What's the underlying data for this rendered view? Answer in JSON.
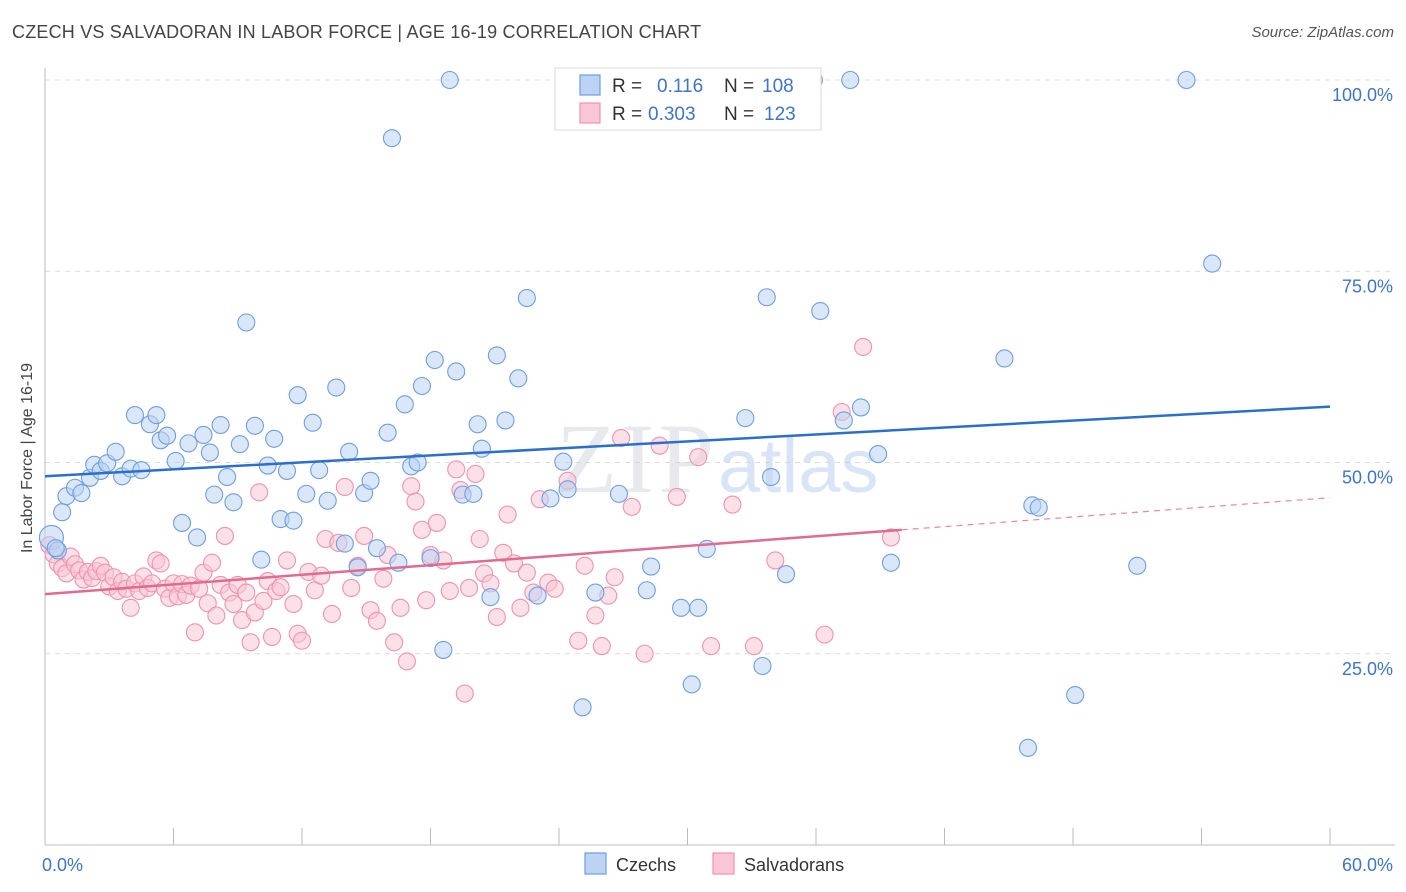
{
  "header": {
    "title": "CZECH VS SALVADORAN IN LABOR FORCE | AGE 16-19 CORRELATION CHART",
    "source": "Source: ZipAtlas.com"
  },
  "watermark": {
    "zip": "ZIP",
    "atlas": "atlas"
  },
  "legend_top": {
    "rows": [
      {
        "r_label": "R =",
        "r_value": "0.116",
        "n_label": "N =",
        "n_value": "108"
      },
      {
        "r_label": "R =",
        "r_value": "0.303",
        "n_label": "N =",
        "n_value": "123"
      }
    ]
  },
  "chart_data": {
    "type": "scatter",
    "title": "CZECH VS SALVADORAN IN LABOR FORCE | AGE 16-19 CORRELATION CHART",
    "xlabel": "",
    "ylabel": "In Labor Force | Age 16-19",
    "xlim": [
      0,
      60
    ],
    "ylim": [
      0,
      102
    ],
    "x_tick_labels": [
      "0.0%",
      "60.0%"
    ],
    "y_ticks": [
      25,
      50,
      75,
      100
    ],
    "y_tick_labels": [
      "25.0%",
      "50.0%",
      "75.0%",
      "100.0%"
    ],
    "grid": true,
    "legend_position": "bottom",
    "colors": {
      "czechs": "#6f9ee0",
      "salvadorans": "#ef93b0",
      "czech_line": "#2b6fcc",
      "salv_line": "#e06a90",
      "tick_label": "#3f74c8"
    },
    "series": [
      {
        "name": "Czechs",
        "r": 0.116,
        "n": 108,
        "trend": {
          "x": [
            0,
            60
          ],
          "y": [
            48.2,
            57.3
          ]
        },
        "points": [
          [
            0.3,
            40.2
          ],
          [
            0.6,
            38.5
          ],
          [
            0.8,
            43.5
          ],
          [
            1.0,
            45.6
          ],
          [
            1.4,
            46.7
          ],
          [
            1.7,
            46.0
          ],
          [
            2.1,
            48.0
          ],
          [
            2.3,
            49.7
          ],
          [
            2.6,
            48.9
          ],
          [
            2.9,
            49.9
          ],
          [
            3.3,
            51.4
          ],
          [
            3.6,
            48.2
          ],
          [
            4.0,
            49.2
          ],
          [
            4.5,
            49.0
          ],
          [
            4.2,
            56.2
          ],
          [
            4.9,
            55.0
          ],
          [
            5.2,
            56.2
          ],
          [
            5.4,
            52.9
          ],
          [
            5.7,
            53.5
          ],
          [
            6.1,
            50.2
          ],
          [
            6.4,
            42.1
          ],
          [
            6.7,
            52.5
          ],
          [
            7.1,
            40.2
          ],
          [
            7.4,
            53.6
          ],
          [
            7.7,
            51.3
          ],
          [
            7.9,
            45.8
          ],
          [
            8.2,
            54.9
          ],
          [
            8.5,
            48.1
          ],
          [
            8.8,
            44.8
          ],
          [
            9.1,
            52.4
          ],
          [
            9.4,
            68.3
          ],
          [
            9.8,
            54.8
          ],
          [
            10.1,
            37.3
          ],
          [
            10.4,
            49.6
          ],
          [
            10.7,
            53.1
          ],
          [
            11.0,
            42.6
          ],
          [
            11.3,
            48.9
          ],
          [
            11.6,
            42.4
          ],
          [
            11.8,
            58.8
          ],
          [
            12.2,
            45.9
          ],
          [
            12.5,
            55.2
          ],
          [
            12.8,
            49.0
          ],
          [
            13.2,
            45.0
          ],
          [
            13.6,
            59.8
          ],
          [
            14.0,
            39.4
          ],
          [
            14.2,
            51.4
          ],
          [
            14.6,
            36.3
          ],
          [
            14.9,
            46.0
          ],
          [
            15.2,
            47.6
          ],
          [
            15.5,
            38.8
          ],
          [
            16.0,
            53.9
          ],
          [
            16.2,
            92.4
          ],
          [
            16.5,
            36.9
          ],
          [
            16.8,
            57.6
          ],
          [
            17.1,
            49.5
          ],
          [
            17.4,
            50.0
          ],
          [
            17.6,
            60.0
          ],
          [
            18.0,
            37.5
          ],
          [
            18.2,
            63.4
          ],
          [
            18.6,
            25.5
          ],
          [
            18.9,
            100.0
          ],
          [
            19.2,
            61.9
          ],
          [
            19.5,
            45.8
          ],
          [
            20.0,
            45.9
          ],
          [
            20.2,
            55.0
          ],
          [
            20.4,
            51.8
          ],
          [
            20.8,
            32.4
          ],
          [
            21.1,
            64.0
          ],
          [
            21.5,
            55.5
          ],
          [
            22.1,
            61.0
          ],
          [
            22.5,
            71.5
          ],
          [
            23.0,
            32.6
          ],
          [
            23.6,
            45.3
          ],
          [
            24.2,
            50.1
          ],
          [
            24.4,
            46.5
          ],
          [
            25.1,
            18.0
          ],
          [
            25.7,
            33.0
          ],
          [
            26.8,
            45.9
          ],
          [
            27.1,
            100.0
          ],
          [
            28.1,
            33.3
          ],
          [
            28.3,
            36.4
          ],
          [
            29.4,
            100.0
          ],
          [
            29.7,
            31.0
          ],
          [
            30.2,
            21.0
          ],
          [
            30.5,
            31.0
          ],
          [
            30.9,
            38.7
          ],
          [
            31.5,
            94.6
          ],
          [
            32.7,
            55.8
          ],
          [
            33.5,
            23.4
          ],
          [
            33.7,
            71.6
          ],
          [
            33.9,
            48.1
          ],
          [
            34.6,
            35.4
          ],
          [
            35.9,
            100.0
          ],
          [
            36.2,
            69.8
          ],
          [
            37.3,
            55.5
          ],
          [
            37.6,
            100.0
          ],
          [
            38.1,
            57.2
          ],
          [
            38.9,
            51.1
          ],
          [
            39.5,
            36.9
          ],
          [
            44.8,
            63.6
          ],
          [
            45.9,
            12.7
          ],
          [
            46.1,
            44.4
          ],
          [
            46.4,
            44.1
          ],
          [
            48.1,
            19.6
          ],
          [
            51.0,
            36.5
          ],
          [
            53.3,
            100.0
          ],
          [
            54.5,
            76.0
          ],
          [
            0.5,
            38.8
          ]
        ]
      },
      {
        "name": "Salvadorans",
        "r": 0.303,
        "n": 123,
        "trend": {
          "x": [
            0,
            40
          ],
          "y": [
            32.8,
            41.2
          ],
          "dashed_to": {
            "x": 60,
            "y": 45.4
          }
        },
        "points": [
          [
            0.2,
            39.2
          ],
          [
            0.4,
            38.0
          ],
          [
            0.6,
            36.8
          ],
          [
            0.8,
            36.2
          ],
          [
            1.0,
            35.5
          ],
          [
            1.2,
            37.7
          ],
          [
            1.4,
            36.7
          ],
          [
            1.6,
            35.9
          ],
          [
            1.8,
            34.7
          ],
          [
            2.0,
            35.7
          ],
          [
            2.2,
            34.9
          ],
          [
            2.4,
            35.8
          ],
          [
            2.6,
            36.5
          ],
          [
            2.8,
            35.6
          ],
          [
            3.0,
            33.8
          ],
          [
            3.2,
            35.0
          ],
          [
            3.4,
            33.2
          ],
          [
            3.6,
            34.4
          ],
          [
            3.8,
            33.5
          ],
          [
            4.0,
            31.0
          ],
          [
            4.2,
            34.2
          ],
          [
            4.4,
            33.2
          ],
          [
            4.6,
            35.1
          ],
          [
            4.8,
            33.6
          ],
          [
            5.0,
            34.2
          ],
          [
            5.2,
            37.2
          ],
          [
            5.4,
            36.8
          ],
          [
            5.6,
            33.5
          ],
          [
            5.8,
            32.3
          ],
          [
            6.0,
            34.2
          ],
          [
            6.2,
            32.5
          ],
          [
            6.4,
            34.1
          ],
          [
            6.6,
            32.7
          ],
          [
            6.8,
            33.9
          ],
          [
            7.0,
            27.8
          ],
          [
            7.2,
            33.5
          ],
          [
            7.4,
            35.6
          ],
          [
            7.6,
            31.6
          ],
          [
            7.8,
            36.9
          ],
          [
            8.0,
            30.0
          ],
          [
            8.2,
            34.0
          ],
          [
            8.4,
            40.4
          ],
          [
            8.6,
            33.0
          ],
          [
            8.8,
            31.5
          ],
          [
            9.0,
            34.0
          ],
          [
            9.2,
            29.4
          ],
          [
            9.4,
            33.0
          ],
          [
            9.6,
            26.5
          ],
          [
            9.8,
            30.4
          ],
          [
            10.0,
            46.1
          ],
          [
            10.2,
            31.9
          ],
          [
            10.4,
            34.5
          ],
          [
            10.6,
            27.2
          ],
          [
            10.8,
            33.2
          ],
          [
            11.0,
            33.7
          ],
          [
            11.3,
            37.2
          ],
          [
            11.6,
            31.5
          ],
          [
            11.8,
            27.6
          ],
          [
            12.0,
            26.7
          ],
          [
            12.3,
            35.7
          ],
          [
            12.6,
            33.3
          ],
          [
            12.9,
            35.2
          ],
          [
            13.1,
            40.0
          ],
          [
            13.4,
            30.2
          ],
          [
            13.7,
            39.5
          ],
          [
            14.0,
            46.8
          ],
          [
            14.3,
            33.6
          ],
          [
            14.6,
            36.5
          ],
          [
            14.9,
            40.4
          ],
          [
            15.2,
            30.7
          ],
          [
            15.5,
            29.3
          ],
          [
            15.8,
            34.8
          ],
          [
            16.0,
            37.9
          ],
          [
            16.3,
            26.5
          ],
          [
            16.6,
            31.0
          ],
          [
            16.9,
            24.0
          ],
          [
            17.1,
            46.9
          ],
          [
            17.3,
            44.9
          ],
          [
            17.6,
            41.2
          ],
          [
            17.8,
            32.0
          ],
          [
            18.0,
            37.9
          ],
          [
            18.3,
            42.1
          ],
          [
            18.6,
            37.2
          ],
          [
            18.9,
            33.2
          ],
          [
            19.2,
            49.1
          ],
          [
            19.4,
            46.4
          ],
          [
            19.6,
            19.8
          ],
          [
            19.8,
            33.6
          ],
          [
            20.1,
            48.5
          ],
          [
            20.3,
            40.0
          ],
          [
            20.5,
            35.5
          ],
          [
            20.8,
            34.2
          ],
          [
            21.1,
            29.8
          ],
          [
            21.4,
            38.2
          ],
          [
            21.6,
            43.2
          ],
          [
            21.9,
            36.8
          ],
          [
            22.2,
            31.0
          ],
          [
            22.5,
            35.6
          ],
          [
            22.8,
            33.0
          ],
          [
            23.1,
            45.2
          ],
          [
            23.5,
            34.3
          ],
          [
            23.8,
            33.5
          ],
          [
            24.4,
            47.6
          ],
          [
            24.9,
            26.7
          ],
          [
            25.2,
            36.5
          ],
          [
            25.7,
            30.0
          ],
          [
            26.0,
            26.0
          ],
          [
            26.3,
            32.6
          ],
          [
            26.6,
            35.0
          ],
          [
            26.9,
            53.2
          ],
          [
            27.4,
            44.2
          ],
          [
            28.0,
            25.0
          ],
          [
            28.7,
            52.2
          ],
          [
            29.5,
            45.5
          ],
          [
            30.5,
            50.7
          ],
          [
            31.1,
            26.0
          ],
          [
            32.1,
            44.5
          ],
          [
            33.1,
            26.0
          ],
          [
            34.1,
            37.2
          ],
          [
            36.4,
            27.5
          ],
          [
            37.2,
            56.6
          ],
          [
            38.2,
            65.1
          ],
          [
            39.5,
            40.2
          ]
        ]
      }
    ]
  },
  "legend_bottom": {
    "items": [
      {
        "label": "Czechs"
      },
      {
        "label": "Salvadorans"
      }
    ]
  }
}
